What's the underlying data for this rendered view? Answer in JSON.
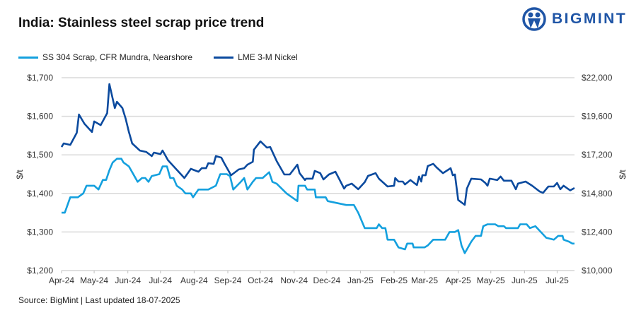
{
  "title": "India: Stainless steel scrap price trend",
  "logo": {
    "text": "BIGMINT",
    "color": "#1f55a6"
  },
  "source": "Source: BigMint | Last updated 18-07-2025",
  "chart_data": {
    "type": "line",
    "title": "India: Stainless steel scrap price trend",
    "legend_position": "top-left",
    "grid": true,
    "x_range": [
      "2024-04-01",
      "2025-07-17"
    ],
    "x_ticks": [
      {
        "date": "2024-04-01",
        "label": "Apr-24"
      },
      {
        "date": "2024-05-01",
        "label": "May-24"
      },
      {
        "date": "2024-06-01",
        "label": "Jun-24"
      },
      {
        "date": "2024-07-01",
        "label": "Jul-24"
      },
      {
        "date": "2024-08-01",
        "label": "Aug-24"
      },
      {
        "date": "2024-09-01",
        "label": "Sep-24"
      },
      {
        "date": "2024-10-01",
        "label": "Oct-24"
      },
      {
        "date": "2024-11-01",
        "label": "Nov-24"
      },
      {
        "date": "2024-12-01",
        "label": "Dec-24"
      },
      {
        "date": "2025-01-01",
        "label": "Jan-25"
      },
      {
        "date": "2025-02-01",
        "label": "Feb-25"
      },
      {
        "date": "2025-03-01",
        "label": "Mar-25"
      },
      {
        "date": "2025-04-01",
        "label": "Apr-25"
      },
      {
        "date": "2025-05-01",
        "label": "May-25"
      },
      {
        "date": "2025-06-01",
        "label": "Jun-25"
      },
      {
        "date": "2025-07-01",
        "label": "Jul-25"
      }
    ],
    "y_left": {
      "label": "$/t",
      "range": [
        1200,
        1700
      ],
      "ticks": [
        1200,
        1300,
        1400,
        1500,
        1600,
        1700
      ],
      "tick_labels": [
        "$1,200",
        "$1,300",
        "$1,400",
        "$1,500",
        "$1,600",
        "$1,700"
      ]
    },
    "y_right": {
      "label": "$/t",
      "range": [
        10000,
        22000
      ],
      "ticks": [
        10000,
        12400,
        14800,
        17200,
        19600,
        22000
      ],
      "tick_labels": [
        "$10,000",
        "$12,400",
        "$14,800",
        "$17,200",
        "$19,600",
        "$22,000"
      ]
    },
    "series": [
      {
        "name": "SS 304 Scrap, CFR Mundra, Nearshore",
        "axis": "left",
        "color": "#14a0de",
        "points": [
          [
            "2024-04-01",
            1350
          ],
          [
            "2024-04-04",
            1350
          ],
          [
            "2024-04-09",
            1390
          ],
          [
            "2024-04-16",
            1390
          ],
          [
            "2024-04-21",
            1400
          ],
          [
            "2024-04-24",
            1420
          ],
          [
            "2024-05-01",
            1420
          ],
          [
            "2024-05-05",
            1410
          ],
          [
            "2024-05-09",
            1435
          ],
          [
            "2024-05-12",
            1435
          ],
          [
            "2024-05-15",
            1460
          ],
          [
            "2024-05-18",
            1480
          ],
          [
            "2024-05-22",
            1490
          ],
          [
            "2024-05-26",
            1490
          ],
          [
            "2024-05-28",
            1480
          ],
          [
            "2024-06-02",
            1470
          ],
          [
            "2024-06-07",
            1445
          ],
          [
            "2024-06-10",
            1430
          ],
          [
            "2024-06-14",
            1440
          ],
          [
            "2024-06-17",
            1440
          ],
          [
            "2024-06-20",
            1430
          ],
          [
            "2024-06-23",
            1445
          ],
          [
            "2024-06-30",
            1450
          ],
          [
            "2024-07-03",
            1470
          ],
          [
            "2024-07-07",
            1470
          ],
          [
            "2024-07-10",
            1440
          ],
          [
            "2024-07-13",
            1440
          ],
          [
            "2024-07-16",
            1420
          ],
          [
            "2024-07-21",
            1410
          ],
          [
            "2024-07-24",
            1400
          ],
          [
            "2024-07-29",
            1400
          ],
          [
            "2024-07-31",
            1390
          ],
          [
            "2024-08-05",
            1410
          ],
          [
            "2024-08-14",
            1410
          ],
          [
            "2024-08-21",
            1420
          ],
          [
            "2024-08-25",
            1450
          ],
          [
            "2024-08-31",
            1450
          ],
          [
            "2024-09-03",
            1445
          ],
          [
            "2024-09-06",
            1410
          ],
          [
            "2024-09-13",
            1430
          ],
          [
            "2024-09-16",
            1440
          ],
          [
            "2024-09-19",
            1410
          ],
          [
            "2024-09-24",
            1430
          ],
          [
            "2024-09-27",
            1440
          ],
          [
            "2024-10-03",
            1440
          ],
          [
            "2024-10-09",
            1455
          ],
          [
            "2024-10-12",
            1430
          ],
          [
            "2024-10-16",
            1425
          ],
          [
            "2024-10-25",
            1400
          ],
          [
            "2024-11-04",
            1380
          ],
          [
            "2024-11-05",
            1420
          ],
          [
            "2024-11-11",
            1420
          ],
          [
            "2024-11-13",
            1410
          ],
          [
            "2024-11-20",
            1410
          ],
          [
            "2024-11-21",
            1390
          ],
          [
            "2024-11-30",
            1390
          ],
          [
            "2024-12-02",
            1380
          ],
          [
            "2024-12-19",
            1370
          ],
          [
            "2024-12-26",
            1370
          ],
          [
            "2024-12-30",
            1350
          ],
          [
            "2025-01-05",
            1310
          ],
          [
            "2025-01-16",
            1310
          ],
          [
            "2025-01-18",
            1320
          ],
          [
            "2025-01-21",
            1310
          ],
          [
            "2025-01-24",
            1310
          ],
          [
            "2025-01-26",
            1280
          ],
          [
            "2025-02-01",
            1280
          ],
          [
            "2025-02-05",
            1260
          ],
          [
            "2025-02-11",
            1255
          ],
          [
            "2025-02-13",
            1270
          ],
          [
            "2025-02-18",
            1270
          ],
          [
            "2025-02-19",
            1260
          ],
          [
            "2025-03-01",
            1260
          ],
          [
            "2025-03-04",
            1265
          ],
          [
            "2025-03-09",
            1280
          ],
          [
            "2025-03-20",
            1280
          ],
          [
            "2025-03-24",
            1300
          ],
          [
            "2025-03-29",
            1300
          ],
          [
            "2025-04-01",
            1305
          ],
          [
            "2025-04-04",
            1265
          ],
          [
            "2025-04-07",
            1245
          ],
          [
            "2025-04-13",
            1275
          ],
          [
            "2025-04-17",
            1290
          ],
          [
            "2025-04-22",
            1290
          ],
          [
            "2025-04-24",
            1315
          ],
          [
            "2025-04-28",
            1320
          ],
          [
            "2025-05-05",
            1320
          ],
          [
            "2025-05-08",
            1315
          ],
          [
            "2025-05-13",
            1315
          ],
          [
            "2025-05-15",
            1310
          ],
          [
            "2025-05-26",
            1310
          ],
          [
            "2025-05-28",
            1320
          ],
          [
            "2025-06-03",
            1320
          ],
          [
            "2025-06-06",
            1310
          ],
          [
            "2025-06-11",
            1315
          ],
          [
            "2025-06-16",
            1300
          ],
          [
            "2025-06-21",
            1285
          ],
          [
            "2025-06-28",
            1280
          ],
          [
            "2025-07-02",
            1290
          ],
          [
            "2025-07-06",
            1290
          ],
          [
            "2025-07-07",
            1280
          ],
          [
            "2025-07-12",
            1275
          ],
          [
            "2025-07-15",
            1270
          ],
          [
            "2025-07-17",
            1270
          ]
        ]
      },
      {
        "name": "LME 3-M Nickel",
        "axis": "right",
        "color": "#0b4a9e",
        "points": [
          [
            "2024-04-01",
            17690
          ],
          [
            "2024-04-03",
            17910
          ],
          [
            "2024-04-09",
            17820
          ],
          [
            "2024-04-15",
            18570
          ],
          [
            "2024-04-17",
            19710
          ],
          [
            "2024-04-22",
            19140
          ],
          [
            "2024-04-29",
            18620
          ],
          [
            "2024-05-01",
            19280
          ],
          [
            "2024-05-07",
            19050
          ],
          [
            "2024-05-13",
            19800
          ],
          [
            "2024-05-15",
            21600
          ],
          [
            "2024-05-20",
            20110
          ],
          [
            "2024-05-22",
            20500
          ],
          [
            "2024-05-27",
            20110
          ],
          [
            "2024-05-30",
            19450
          ],
          [
            "2024-06-02",
            18620
          ],
          [
            "2024-06-05",
            17910
          ],
          [
            "2024-06-12",
            17470
          ],
          [
            "2024-06-18",
            17380
          ],
          [
            "2024-06-23",
            17120
          ],
          [
            "2024-06-25",
            17340
          ],
          [
            "2024-07-01",
            17250
          ],
          [
            "2024-07-03",
            17470
          ],
          [
            "2024-07-08",
            16860
          ],
          [
            "2024-07-14",
            16420
          ],
          [
            "2024-07-23",
            15760
          ],
          [
            "2024-07-29",
            16330
          ],
          [
            "2024-08-05",
            16150
          ],
          [
            "2024-08-08",
            16370
          ],
          [
            "2024-08-12",
            16370
          ],
          [
            "2024-08-14",
            16680
          ],
          [
            "2024-08-19",
            16640
          ],
          [
            "2024-08-21",
            17120
          ],
          [
            "2024-08-26",
            17030
          ],
          [
            "2024-08-29",
            16640
          ],
          [
            "2024-09-04",
            15930
          ],
          [
            "2024-09-11",
            16290
          ],
          [
            "2024-09-16",
            16370
          ],
          [
            "2024-09-19",
            16590
          ],
          [
            "2024-09-24",
            16770
          ],
          [
            "2024-09-25",
            17520
          ],
          [
            "2024-10-01",
            18040
          ],
          [
            "2024-10-07",
            17650
          ],
          [
            "2024-10-10",
            17690
          ],
          [
            "2024-10-16",
            16810
          ],
          [
            "2024-10-23",
            15980
          ],
          [
            "2024-10-28",
            15980
          ],
          [
            "2024-11-04",
            16590
          ],
          [
            "2024-11-06",
            16060
          ],
          [
            "2024-11-11",
            15630
          ],
          [
            "2024-11-12",
            15720
          ],
          [
            "2024-11-18",
            15720
          ],
          [
            "2024-11-20",
            16200
          ],
          [
            "2024-11-25",
            16060
          ],
          [
            "2024-11-28",
            15670
          ],
          [
            "2024-12-03",
            15980
          ],
          [
            "2024-12-09",
            16150
          ],
          [
            "2024-12-13",
            15630
          ],
          [
            "2024-12-17",
            15100
          ],
          [
            "2024-12-19",
            15280
          ],
          [
            "2024-12-24",
            15410
          ],
          [
            "2024-12-30",
            15060
          ],
          [
            "2025-01-05",
            15500
          ],
          [
            "2025-01-08",
            15890
          ],
          [
            "2025-01-15",
            16060
          ],
          [
            "2025-01-18",
            15720
          ],
          [
            "2025-01-26",
            15230
          ],
          [
            "2025-02-01",
            15280
          ],
          [
            "2025-02-02",
            15760
          ],
          [
            "2025-02-05",
            15540
          ],
          [
            "2025-02-09",
            15540
          ],
          [
            "2025-02-11",
            15360
          ],
          [
            "2025-02-16",
            15630
          ],
          [
            "2025-02-22",
            15320
          ],
          [
            "2025-02-24",
            15850
          ],
          [
            "2025-02-26",
            15540
          ],
          [
            "2025-02-27",
            15930
          ],
          [
            "2025-03-02",
            15930
          ],
          [
            "2025-03-04",
            16500
          ],
          [
            "2025-03-09",
            16640
          ],
          [
            "2025-03-12",
            16420
          ],
          [
            "2025-03-18",
            16060
          ],
          [
            "2025-03-25",
            16370
          ],
          [
            "2025-03-27",
            15930
          ],
          [
            "2025-03-29",
            15980
          ],
          [
            "2025-04-01",
            14390
          ],
          [
            "2025-04-07",
            14090
          ],
          [
            "2025-04-09",
            15100
          ],
          [
            "2025-04-13",
            15720
          ],
          [
            "2025-04-22",
            15670
          ],
          [
            "2025-04-26",
            15450
          ],
          [
            "2025-04-28",
            15280
          ],
          [
            "2025-04-30",
            15720
          ],
          [
            "2025-05-07",
            15630
          ],
          [
            "2025-05-10",
            15850
          ],
          [
            "2025-05-13",
            15590
          ],
          [
            "2025-05-20",
            15590
          ],
          [
            "2025-05-24",
            15060
          ],
          [
            "2025-05-26",
            15410
          ],
          [
            "2025-06-02",
            15540
          ],
          [
            "2025-06-08",
            15280
          ],
          [
            "2025-06-15",
            14920
          ],
          [
            "2025-06-18",
            14830
          ],
          [
            "2025-06-23",
            15230
          ],
          [
            "2025-06-28",
            15230
          ],
          [
            "2025-07-01",
            15450
          ],
          [
            "2025-07-04",
            15060
          ],
          [
            "2025-07-07",
            15280
          ],
          [
            "2025-07-13",
            14990
          ],
          [
            "2025-07-17",
            15140
          ]
        ]
      }
    ]
  }
}
